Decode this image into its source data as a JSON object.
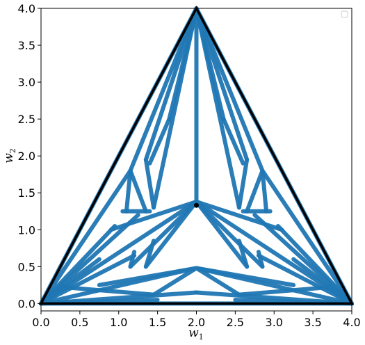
{
  "chart_data": {
    "type": "scatter",
    "title": "",
    "xlabel": "w",
    "xlabel_sub": "1",
    "ylabel": "w",
    "ylabel_sub": "2",
    "xlim": [
      0.0,
      4.0
    ],
    "ylim": [
      -0.1,
      4.0
    ],
    "xticks": [
      0.0,
      0.5,
      1.0,
      1.5,
      2.0,
      2.5,
      3.0,
      3.5,
      4.0
    ],
    "xtick_labels": [
      "0.0",
      "0.5",
      "1.0",
      "1.5",
      "2.0",
      "2.5",
      "3.0",
      "3.5",
      "4.0"
    ],
    "yticks": [
      0.0,
      0.5,
      1.0,
      1.5,
      2.0,
      2.5,
      3.0,
      3.5,
      4.0
    ],
    "ytick_labels": [
      "0.0",
      "0.5",
      "1.0",
      "1.5",
      "2.0",
      "2.5",
      "3.0",
      "3.5",
      "4.0"
    ],
    "grid": false,
    "legend": "top-right",
    "colors": {
      "band": "#1f77b4",
      "outline": "#000000",
      "marker": "#000000"
    },
    "boundary_triangle": [
      [
        0.0,
        0.0
      ],
      [
        2.0,
        4.0
      ],
      [
        4.0,
        0.0
      ]
    ],
    "marker_point": [
      2.0,
      1.33
    ],
    "bands": [
      [
        [
          0.0,
          0.0
        ],
        [
          2.0,
          4.0
        ]
      ],
      [
        [
          4.0,
          0.0
        ],
        [
          2.0,
          4.0
        ]
      ],
      [
        [
          0.0,
          0.0
        ],
        [
          4.0,
          0.0
        ]
      ],
      [
        [
          2.0,
          4.0
        ],
        [
          2.0,
          1.38
        ]
      ],
      [
        [
          2.0,
          4.0
        ],
        [
          1.65,
          2.5
        ]
      ],
      [
        [
          2.0,
          4.0
        ],
        [
          2.35,
          2.5
        ]
      ],
      [
        [
          2.0,
          4.0
        ],
        [
          1.35,
          1.95
        ]
      ],
      [
        [
          2.0,
          4.0
        ],
        [
          2.65,
          1.95
        ]
      ],
      [
        [
          2.0,
          4.0
        ],
        [
          1.45,
          1.3
        ]
      ],
      [
        [
          2.0,
          4.0
        ],
        [
          2.55,
          1.3
        ]
      ],
      [
        [
          2.0,
          4.0
        ],
        [
          1.15,
          1.8
        ]
      ],
      [
        [
          2.0,
          4.0
        ],
        [
          2.85,
          1.8
        ]
      ],
      [
        [
          1.65,
          2.5
        ],
        [
          1.4,
          1.9
        ]
      ],
      [
        [
          2.35,
          2.5
        ],
        [
          2.6,
          1.9
        ]
      ],
      [
        [
          1.35,
          1.95
        ],
        [
          1.45,
          1.3
        ]
      ],
      [
        [
          2.65,
          1.95
        ],
        [
          2.55,
          1.3
        ]
      ],
      [
        [
          1.15,
          1.8
        ],
        [
          1.1,
          1.25
        ]
      ],
      [
        [
          2.85,
          1.8
        ],
        [
          2.9,
          1.25
        ]
      ],
      [
        [
          1.15,
          1.8
        ],
        [
          1.35,
          1.25
        ]
      ],
      [
        [
          2.85,
          1.8
        ],
        [
          2.65,
          1.25
        ]
      ],
      [
        [
          1.05,
          1.25
        ],
        [
          1.4,
          1.25
        ]
      ],
      [
        [
          2.6,
          1.25
        ],
        [
          2.95,
          1.25
        ]
      ],
      [
        [
          1.15,
          1.8
        ],
        [
          0.0,
          0.0
        ]
      ],
      [
        [
          2.85,
          1.8
        ],
        [
          4.0,
          0.0
        ]
      ],
      [
        [
          1.25,
          1.2
        ],
        [
          0.0,
          0.0
        ]
      ],
      [
        [
          2.75,
          1.2
        ],
        [
          4.0,
          0.0
        ]
      ],
      [
        [
          0.95,
          1.05
        ],
        [
          0.0,
          0.0
        ]
      ],
      [
        [
          3.05,
          1.05
        ],
        [
          4.0,
          0.0
        ]
      ],
      [
        [
          2.0,
          1.38
        ],
        [
          0.0,
          0.0
        ]
      ],
      [
        [
          2.0,
          1.38
        ],
        [
          4.0,
          0.0
        ]
      ],
      [
        [
          2.0,
          1.38
        ],
        [
          0.9,
          1.0
        ]
      ],
      [
        [
          2.0,
          1.38
        ],
        [
          3.1,
          1.0
        ]
      ],
      [
        [
          2.0,
          1.38
        ],
        [
          1.35,
          0.5
        ]
      ],
      [
        [
          2.0,
          1.38
        ],
        [
          2.65,
          0.5
        ]
      ],
      [
        [
          2.0,
          1.38
        ],
        [
          1.15,
          0.5
        ]
      ],
      [
        [
          2.0,
          1.38
        ],
        [
          2.85,
          0.5
        ]
      ],
      [
        [
          1.35,
          0.5
        ],
        [
          1.45,
          0.85
        ]
      ],
      [
        [
          2.65,
          0.5
        ],
        [
          2.55,
          0.85
        ]
      ],
      [
        [
          1.15,
          0.5
        ],
        [
          1.2,
          0.7
        ]
      ],
      [
        [
          2.85,
          0.5
        ],
        [
          2.8,
          0.7
        ]
      ],
      [
        [
          1.2,
          0.65
        ],
        [
          0.0,
          0.0
        ]
      ],
      [
        [
          2.8,
          0.65
        ],
        [
          4.0,
          0.0
        ]
      ],
      [
        [
          0.75,
          0.6
        ],
        [
          0.0,
          0.0
        ]
      ],
      [
        [
          3.25,
          0.6
        ],
        [
          4.0,
          0.0
        ]
      ],
      [
        [
          2.0,
          0.48
        ],
        [
          0.0,
          0.0
        ]
      ],
      [
        [
          2.0,
          0.48
        ],
        [
          4.0,
          0.0
        ]
      ],
      [
        [
          2.0,
          0.48
        ],
        [
          0.75,
          0.25
        ]
      ],
      [
        [
          2.0,
          0.48
        ],
        [
          3.25,
          0.25
        ]
      ],
      [
        [
          2.0,
          0.48
        ],
        [
          1.45,
          0.12
        ]
      ],
      [
        [
          2.0,
          0.48
        ],
        [
          2.55,
          0.12
        ]
      ],
      [
        [
          1.45,
          0.12
        ],
        [
          0.3,
          0.22
        ]
      ],
      [
        [
          2.55,
          0.12
        ],
        [
          3.7,
          0.22
        ]
      ],
      [
        [
          2.0,
          0.15
        ],
        [
          0.0,
          0.0
        ]
      ],
      [
        [
          2.0,
          0.15
        ],
        [
          4.0,
          0.0
        ]
      ],
      [
        [
          1.5,
          0.05
        ],
        [
          0.0,
          0.0
        ]
      ],
      [
        [
          2.5,
          0.05
        ],
        [
          4.0,
          0.0
        ]
      ]
    ],
    "band_labels": []
  }
}
